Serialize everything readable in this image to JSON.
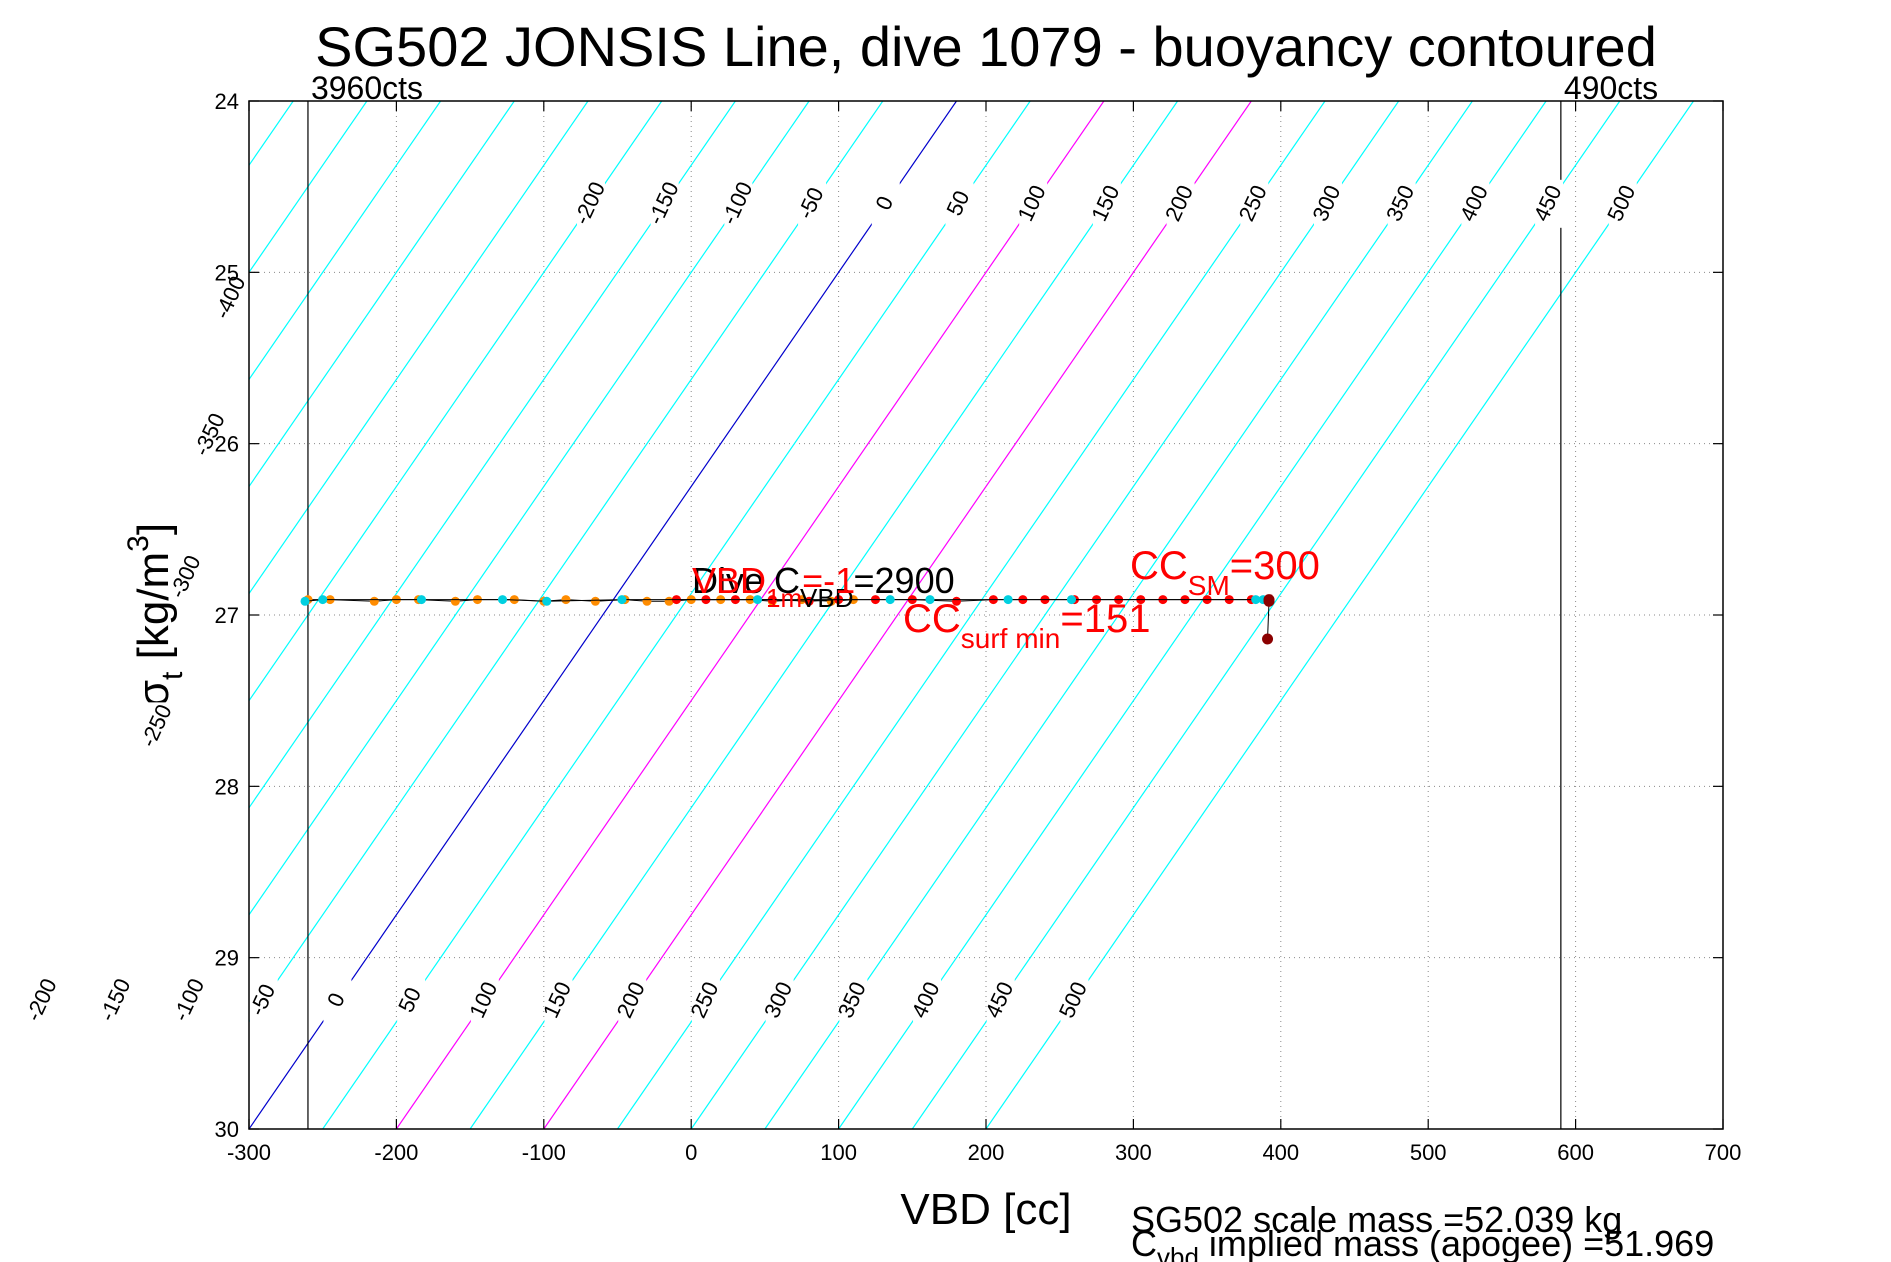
{
  "chart_data": {
    "type": "scatter",
    "title": "SG502 JONSIS Line, dive 1079 - buoyancy contoured",
    "xlabel": "VBD [cc]",
    "ylabel": {
      "base": "σ",
      "sub": "t",
      "text": " [kg/m",
      "sup": "3",
      "close": "]"
    },
    "xlim": [
      -300,
      700
    ],
    "ylim": [
      24,
      30
    ],
    "y_reversed": true,
    "grid": true,
    "x_ticks": [
      "-300",
      "-200",
      "-100",
      "0",
      "100",
      "200",
      "300",
      "400",
      "500",
      "600",
      "700"
    ],
    "y_ticks": [
      "24",
      "25",
      "26",
      "27",
      "28",
      "29",
      "30"
    ],
    "vlines": [
      {
        "x": -260,
        "label": "3960cts"
      },
      {
        "x": 590,
        "label": "490cts"
      }
    ],
    "contours": {
      "levels": [
        -500,
        -450,
        -400,
        -350,
        -300,
        -250,
        -200,
        -150,
        -100,
        -50,
        0,
        50,
        100,
        150,
        200,
        250,
        300,
        350,
        400,
        450,
        500
      ],
      "slope_cc_per_sigma": 80,
      "zero_x_at_sigma24": 180,
      "colors": {
        "default": "#00ffff",
        "zero": "#0000cc",
        "highlight": "#ff00ff"
      },
      "highlight_levels": [
        100,
        200
      ],
      "top_labels": [
        "-200",
        "-150",
        "-100",
        "-50",
        "0",
        "50",
        "100",
        "150",
        "200",
        "250",
        "300",
        "350",
        "400",
        "450",
        "500"
      ],
      "bottom_labels": [
        "-200",
        "-150",
        "-100",
        "-50",
        "0",
        "50",
        "100",
        "150",
        "200",
        "250",
        "300",
        "350",
        "400",
        "450",
        "500"
      ],
      "left_labels": [
        "-400",
        "-350",
        "-300",
        "-250"
      ]
    },
    "series": [
      {
        "name": "dive",
        "color": "#ff8c00",
        "x": [
          -260,
          -245,
          -215,
          -200,
          -185,
          -160,
          -145,
          -120,
          -100,
          -85,
          -65,
          -45,
          -30,
          -15,
          0,
          20,
          40,
          55,
          75,
          95,
          110
        ],
        "y": [
          26.91,
          26.91,
          26.92,
          26.91,
          26.91,
          26.92,
          26.91,
          26.91,
          26.92,
          26.91,
          26.92,
          26.91,
          26.92,
          26.92,
          26.91,
          26.91,
          26.91,
          26.92,
          26.91,
          26.92,
          26.91
        ]
      },
      {
        "name": "climb",
        "color": "#ff0000",
        "x": [
          -10,
          10,
          30,
          55,
          80,
          100,
          125,
          150,
          180,
          205,
          225,
          240,
          260,
          275,
          290,
          305,
          320,
          335,
          350,
          365,
          380,
          392
        ],
        "y": [
          26.91,
          26.91,
          26.91,
          26.91,
          26.92,
          26.91,
          26.91,
          26.91,
          26.92,
          26.91,
          26.91,
          26.91,
          26.91,
          26.91,
          26.91,
          26.91,
          26.91,
          26.91,
          26.91,
          26.91,
          26.91,
          26.91
        ]
      },
      {
        "name": "cyan",
        "color": "#00d0e0",
        "x": [
          -262,
          -250,
          -183,
          -128,
          -98,
          -47,
          45,
          135,
          162,
          215,
          258,
          383,
          388
        ],
        "y": [
          26.92,
          26.91,
          26.91,
          26.91,
          26.92,
          26.91,
          26.91,
          26.91,
          26.91,
          26.91,
          26.91,
          26.91,
          26.91
        ]
      },
      {
        "name": "surface",
        "color": "#8b0000",
        "x": [
          392,
          392,
          391
        ],
        "y": [
          26.91,
          26.92,
          27.14
        ]
      }
    ],
    "annotations": {
      "dive_c_vbd": {
        "color": "#000000",
        "prefix": "Dive C",
        "sub": "VBD",
        "suffix": "=2900"
      },
      "vbd_1m": {
        "color": "#ff0000",
        "prefix": "VBD",
        "sub": "1m",
        "suffix": "=-1"
      },
      "cc_sm": {
        "color": "#ff0000",
        "prefix": "CC",
        "sub": "SM",
        "suffix": "=300"
      },
      "cc_surf_min": {
        "color": "#ff0000",
        "prefix": "CC",
        "sub": "surf min",
        "suffix": "=151"
      }
    },
    "footnotes": {
      "scale_mass": "SG502 scale mass =52.039 kg",
      "implied_prefix": "C",
      "implied_sub": "vbd",
      "implied_text": " implied mass (apogee) =51.969"
    }
  }
}
